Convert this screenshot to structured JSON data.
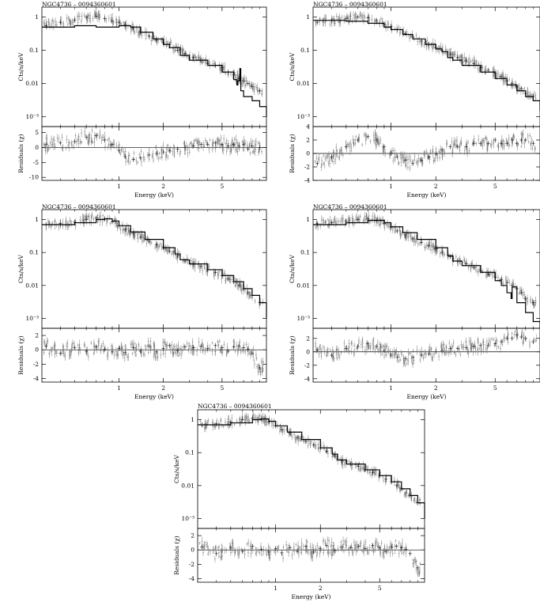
{
  "chart_data": [
    {
      "type": "scatter",
      "title": "NGC4736 – 0094360601",
      "xlabel": "Energy (keV)",
      "xscale": "log",
      "xlim": [
        0.3,
        10
      ],
      "x_ticks": [
        "1",
        "2",
        "5"
      ],
      "spectrum": {
        "ylabel": "Cts/s/keV",
        "yscale": "log",
        "ylim": [
          0.0005,
          2
        ],
        "y_ticks": [
          "1",
          "0.1",
          "0.01",
          "10⁻³"
        ],
        "model": {
          "x": [
            0.3,
            0.5,
            0.7,
            0.9,
            1.0,
            1.1,
            1.2,
            1.4,
            1.7,
            2.0,
            2.2,
            2.6,
            3.0,
            4.0,
            5.0,
            6.0,
            6.3,
            6.4,
            6.6,
            6.7,
            7.0,
            8.0,
            9.0,
            10.0
          ],
          "y": [
            0.5,
            0.55,
            0.5,
            0.5,
            0.55,
            0.55,
            0.5,
            0.35,
            0.22,
            0.15,
            0.12,
            0.07,
            0.05,
            0.035,
            0.022,
            0.013,
            0.009,
            0.012,
            0.028,
            0.006,
            0.004,
            0.003,
            0.002,
            0.001
          ]
        },
        "data": {
          "x": [
            0.32,
            0.4,
            0.5,
            0.6,
            0.7,
            0.8,
            0.9,
            1.0,
            1.1,
            1.25,
            1.4,
            1.6,
            1.8,
            2.0,
            2.2,
            2.5,
            2.8,
            3.2,
            3.6,
            4.0,
            4.5,
            5.0,
            5.5,
            6.0,
            6.5,
            7.0,
            7.5,
            8.0,
            9.0
          ],
          "y": [
            0.55,
            0.7,
            0.8,
            1.0,
            1.05,
            0.9,
            0.75,
            0.7,
            0.6,
            0.45,
            0.35,
            0.27,
            0.2,
            0.17,
            0.15,
            0.1,
            0.08,
            0.06,
            0.05,
            0.04,
            0.035,
            0.03,
            0.022,
            0.018,
            0.014,
            0.012,
            0.01,
            0.008,
            0.006
          ]
        }
      },
      "residuals": {
        "ylabel": "Residuals (χ)",
        "ylim": [
          -11,
          7
        ],
        "y_ticks": [
          "5",
          "0",
          "-5",
          "-10"
        ],
        "x": [
          0.32,
          0.4,
          0.5,
          0.6,
          0.7,
          0.8,
          0.9,
          1.0,
          1.1,
          1.25,
          1.4,
          1.6,
          1.8,
          2.0,
          2.2,
          2.5,
          2.8,
          3.2,
          3.6,
          4.0,
          4.5,
          5.0,
          5.5,
          6.0,
          6.5,
          7.0,
          7.5,
          8.0,
          9.0
        ],
        "y": [
          1,
          1.5,
          2,
          3.5,
          4,
          2.5,
          1,
          -1,
          -3,
          -4,
          -3.5,
          -2.5,
          -2,
          -1.5,
          -1,
          -0.5,
          0,
          0.5,
          1,
          1,
          1.5,
          1,
          0.5,
          1,
          0.5,
          1,
          -0.5,
          0.5,
          0
        ]
      }
    },
    {
      "type": "scatter",
      "title": "NGC4736 – 0094360601",
      "xlabel": "Energy (keV)",
      "xscale": "log",
      "xlim": [
        0.3,
        10
      ],
      "x_ticks": [
        "1",
        "2",
        "5"
      ],
      "spectrum": {
        "ylabel": "Cts/s/keV",
        "yscale": "log",
        "ylim": [
          0.0005,
          2
        ],
        "y_ticks": [
          "1",
          "0.1",
          "0.01",
          "10⁻³"
        ],
        "model": {
          "x": [
            0.3,
            0.5,
            0.7,
            0.9,
            1.0,
            1.2,
            1.4,
            1.7,
            2.0,
            2.2,
            2.4,
            2.6,
            3.0,
            4.0,
            5.0,
            6.0,
            7.0,
            8.0,
            9.0,
            10.0
          ],
          "y": [
            0.8,
            0.75,
            0.65,
            0.5,
            0.42,
            0.3,
            0.22,
            0.15,
            0.11,
            0.09,
            0.06,
            0.05,
            0.035,
            0.022,
            0.014,
            0.009,
            0.006,
            0.004,
            0.003,
            0.0015
          ]
        },
        "data": {
          "x": [
            0.32,
            0.4,
            0.5,
            0.6,
            0.7,
            0.8,
            0.9,
            1.0,
            1.1,
            1.25,
            1.4,
            1.6,
            1.8,
            2.0,
            2.2,
            2.5,
            2.8,
            3.2,
            3.6,
            4.0,
            4.5,
            5.0,
            5.5,
            6.0,
            6.5,
            7.0,
            7.5,
            8.0,
            9.0
          ],
          "y": [
            0.7,
            0.8,
            0.9,
            1.0,
            0.95,
            0.8,
            0.62,
            0.52,
            0.42,
            0.32,
            0.25,
            0.19,
            0.15,
            0.12,
            0.1,
            0.075,
            0.06,
            0.048,
            0.04,
            0.03,
            0.025,
            0.02,
            0.016,
            0.012,
            0.01,
            0.008,
            0.007,
            0.005,
            0.004
          ]
        }
      },
      "residuals": {
        "ylabel": "Residuals (χ)",
        "ylim": [
          -4,
          4
        ],
        "y_ticks": [
          "4",
          "2",
          "0",
          "-2",
          "-4"
        ],
        "x": [
          0.32,
          0.4,
          0.5,
          0.6,
          0.7,
          0.8,
          0.9,
          1.0,
          1.1,
          1.25,
          1.4,
          1.6,
          1.8,
          2.0,
          2.2,
          2.5,
          2.8,
          3.2,
          3.6,
          4.0,
          4.5,
          5.0,
          5.5,
          6.0,
          6.5,
          7.0,
          7.5,
          8.0,
          9.0
        ],
        "y": [
          -1.5,
          -0.5,
          1,
          2,
          2.5,
          2,
          1,
          0,
          -0.5,
          -1,
          -1.5,
          -1,
          -0.5,
          0,
          0.5,
          1,
          1,
          1,
          1.5,
          1.5,
          1.5,
          2,
          1.5,
          1.5,
          2,
          1.5,
          2,
          2,
          1.5
        ]
      }
    },
    {
      "type": "scatter",
      "title": "NGC4736 – 0094360601",
      "xlabel": "Energy (keV)",
      "xscale": "log",
      "xlim": [
        0.3,
        10
      ],
      "x_ticks": [
        "1",
        "2",
        "5"
      ],
      "spectrum": {
        "ylabel": "Cts/s/keV",
        "yscale": "log",
        "ylim": [
          0.0005,
          2
        ],
        "y_ticks": [
          "1",
          "0.1",
          "0.01",
          "10⁻³"
        ],
        "model": {
          "x": [
            0.3,
            0.5,
            0.7,
            0.8,
            0.9,
            1.0,
            1.2,
            1.5,
            2.0,
            2.4,
            2.6,
            3.0,
            4.0,
            5.0,
            6.0,
            7.0,
            8.0,
            9.0,
            10.0
          ],
          "y": [
            0.7,
            0.8,
            1.0,
            1.05,
            0.9,
            0.65,
            0.42,
            0.25,
            0.14,
            0.09,
            0.06,
            0.045,
            0.03,
            0.02,
            0.013,
            0.008,
            0.005,
            0.003,
            0.001
          ]
        },
        "data": {
          "x": [
            0.32,
            0.4,
            0.5,
            0.6,
            0.7,
            0.8,
            0.9,
            1.0,
            1.1,
            1.25,
            1.4,
            1.6,
            1.8,
            2.0,
            2.2,
            2.5,
            2.8,
            3.2,
            3.6,
            4.0,
            4.5,
            5.0,
            5.5,
            6.0,
            6.5,
            7.0,
            7.5,
            8.0,
            9.0
          ],
          "y": [
            0.7,
            0.75,
            0.85,
            1.0,
            1.1,
            1.05,
            0.85,
            0.65,
            0.5,
            0.38,
            0.29,
            0.22,
            0.17,
            0.14,
            0.11,
            0.08,
            0.055,
            0.045,
            0.038,
            0.03,
            0.025,
            0.02,
            0.016,
            0.013,
            0.01,
            0.008,
            0.006,
            0.005,
            0.003
          ]
        }
      },
      "residuals": {
        "ylabel": "Residuals (χ)",
        "ylim": [
          -4.5,
          3
        ],
        "y_ticks": [
          "2",
          "0",
          "-2",
          "-4"
        ],
        "x": [
          0.32,
          0.4,
          0.5,
          0.6,
          0.7,
          0.8,
          0.9,
          1.0,
          1.1,
          1.25,
          1.4,
          1.6,
          1.8,
          2.0,
          2.2,
          2.5,
          2.8,
          3.2,
          3.6,
          4.0,
          4.5,
          5.0,
          5.5,
          6.0,
          6.5,
          7.0,
          7.5,
          8.0,
          9.0
        ],
        "y": [
          0.5,
          -0.5,
          0.3,
          -0.2,
          0.4,
          0.1,
          -0.3,
          0.2,
          -0.4,
          0.3,
          -0.2,
          0.5,
          -0.3,
          0.2,
          0.6,
          -0.1,
          0.4,
          0.3,
          0.5,
          0.2,
          0.6,
          0.3,
          -0.2,
          0.4,
          0.5,
          0.3,
          0.1,
          -0.5,
          -2.5
        ]
      }
    },
    {
      "type": "scatter",
      "title": "NGC4736 – 0094360601",
      "xlabel": "Energy (keV)",
      "xscale": "log",
      "xlim": [
        0.3,
        10
      ],
      "x_ticks": [
        "1",
        "2",
        "5"
      ],
      "spectrum": {
        "ylabel": "Cts/s/keV",
        "yscale": "log",
        "ylim": [
          0.0005,
          2
        ],
        "y_ticks": [
          "1",
          "0.1",
          "0.01",
          "10⁻³"
        ],
        "model": {
          "x": [
            0.3,
            0.5,
            0.7,
            0.8,
            0.9,
            1.0,
            1.2,
            1.5,
            2.0,
            2.4,
            2.6,
            3.0,
            4.0,
            5.0,
            5.5,
            6.0,
            6.4,
            6.5,
            6.7,
            7.0,
            8.0,
            9.0,
            10.0
          ],
          "y": [
            0.7,
            0.8,
            0.95,
            0.95,
            0.8,
            0.6,
            0.4,
            0.25,
            0.14,
            0.08,
            0.055,
            0.04,
            0.025,
            0.014,
            0.01,
            0.006,
            0.004,
            0.009,
            0.009,
            0.003,
            0.0015,
            0.0008,
            0.0005
          ]
        },
        "data": {
          "x": [
            0.32,
            0.4,
            0.5,
            0.6,
            0.7,
            0.8,
            0.9,
            1.0,
            1.1,
            1.25,
            1.4,
            1.6,
            1.8,
            2.0,
            2.2,
            2.5,
            2.8,
            3.2,
            3.6,
            4.0,
            4.5,
            5.0,
            5.5,
            6.0,
            6.5,
            7.0,
            7.5,
            8.0,
            9.0
          ],
          "y": [
            0.75,
            0.8,
            0.9,
            1.0,
            1.05,
            0.95,
            0.75,
            0.58,
            0.45,
            0.34,
            0.26,
            0.2,
            0.16,
            0.13,
            0.1,
            0.075,
            0.055,
            0.045,
            0.035,
            0.028,
            0.022,
            0.018,
            0.015,
            0.012,
            0.01,
            0.008,
            0.006,
            0.004,
            0.003
          ]
        }
      },
      "residuals": {
        "ylabel": "Residuals (χ)",
        "ylim": [
          -4.5,
          3.5
        ],
        "y_ticks": [
          "2",
          "0",
          "-2",
          "-4"
        ],
        "x": [
          0.32,
          0.4,
          0.5,
          0.6,
          0.7,
          0.8,
          0.9,
          1.0,
          1.1,
          1.25,
          1.4,
          1.6,
          1.8,
          2.0,
          2.2,
          2.5,
          2.8,
          3.2,
          3.6,
          4.0,
          4.5,
          5.0,
          5.5,
          6.0,
          6.5,
          7.0,
          7.5,
          8.0,
          9.0
        ],
        "y": [
          0.3,
          -0.5,
          0.5,
          0.8,
          1.2,
          0.8,
          0.2,
          -0.5,
          -0.8,
          -1,
          -0.8,
          -0.5,
          -0.3,
          0,
          0.2,
          0.5,
          0.5,
          0.6,
          0.8,
          1,
          1,
          1.2,
          1.5,
          2,
          2,
          2.5,
          2.2,
          2,
          1.5
        ]
      }
    },
    {
      "type": "scatter",
      "title": "NGC4736 – 0094360601",
      "xlabel": "Energy (keV)",
      "xscale": "log",
      "xlim": [
        0.3,
        10
      ],
      "x_ticks": [
        "1",
        "2",
        "5"
      ],
      "spectrum": {
        "ylabel": "Cts/s/keV",
        "yscale": "log",
        "ylim": [
          0.0005,
          2
        ],
        "y_ticks": [
          "1",
          "0.1",
          "0.01",
          "10⁻³"
        ],
        "model": {
          "x": [
            0.3,
            0.5,
            0.7,
            0.8,
            0.9,
            1.0,
            1.2,
            1.5,
            2.0,
            2.4,
            2.6,
            3.0,
            4.0,
            5.0,
            6.0,
            7.0,
            8.0,
            9.0,
            10.0
          ],
          "y": [
            0.7,
            0.8,
            1.0,
            1.05,
            0.9,
            0.65,
            0.42,
            0.25,
            0.14,
            0.09,
            0.06,
            0.045,
            0.03,
            0.02,
            0.013,
            0.008,
            0.005,
            0.003,
            0.001
          ]
        },
        "data": {
          "x": [
            0.32,
            0.4,
            0.5,
            0.6,
            0.7,
            0.8,
            0.9,
            1.0,
            1.1,
            1.25,
            1.4,
            1.6,
            1.8,
            2.0,
            2.2,
            2.5,
            2.8,
            3.2,
            3.6,
            4.0,
            4.5,
            5.0,
            5.5,
            6.0,
            6.5,
            7.0,
            7.5,
            8.0,
            9.0
          ],
          "y": [
            0.7,
            0.75,
            0.85,
            1.0,
            1.1,
            1.05,
            0.85,
            0.65,
            0.5,
            0.38,
            0.29,
            0.22,
            0.17,
            0.14,
            0.11,
            0.08,
            0.055,
            0.045,
            0.038,
            0.03,
            0.025,
            0.02,
            0.016,
            0.013,
            0.01,
            0.008,
            0.006,
            0.005,
            0.003
          ]
        }
      },
      "residuals": {
        "ylabel": "Residuals (χ)",
        "ylim": [
          -4.5,
          3
        ],
        "y_ticks": [
          "2",
          "0",
          "-2",
          "-4"
        ],
        "x": [
          0.32,
          0.4,
          0.5,
          0.6,
          0.7,
          0.8,
          0.9,
          1.0,
          1.1,
          1.25,
          1.4,
          1.6,
          1.8,
          2.0,
          2.2,
          2.5,
          2.8,
          3.2,
          3.6,
          4.0,
          4.5,
          5.0,
          5.5,
          6.0,
          6.5,
          7.0,
          7.5,
          8.0,
          9.0
        ],
        "y": [
          0.4,
          -0.5,
          0.3,
          -0.2,
          0.5,
          0.1,
          -0.3,
          0.2,
          -0.4,
          0.3,
          -0.2,
          0.5,
          -0.3,
          0.2,
          0.6,
          -0.1,
          0.4,
          0.3,
          0.5,
          0.2,
          0.6,
          0.3,
          -0.2,
          0.4,
          0.5,
          0.3,
          0.1,
          -0.5,
          -2.5
        ]
      }
    }
  ]
}
